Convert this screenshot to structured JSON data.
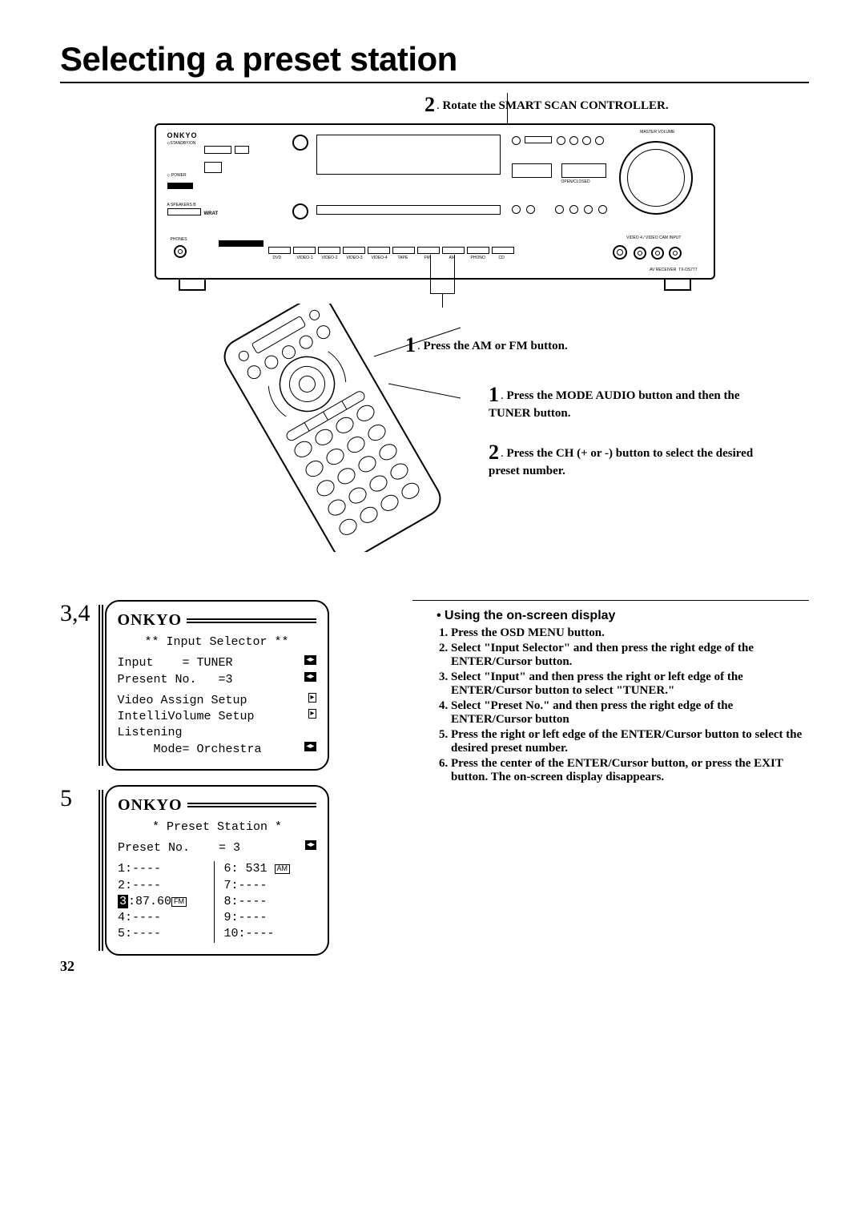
{
  "title": "Selecting a preset station",
  "page_number": "32",
  "brand": "ONKYO",
  "receiver_model": "TX-DS777",
  "receiver_label": "AV RECEIVER",
  "receiver_inputs": [
    "DVD",
    "VIDEO-1",
    "VIDEO-2",
    "VIDEO-3",
    "VIDEO-4",
    "TAPE",
    "FM",
    "AM",
    "PHONO",
    "CD"
  ],
  "callouts": {
    "r1": {
      "num": "1",
      "text": "Press the AM or FM button."
    },
    "r2": {
      "num": "2",
      "text": "Rotate the SMART SCAN CONTROLLER."
    },
    "m1": {
      "num": "1",
      "text": "Press the MODE AUDIO button and then the TUNER button."
    },
    "m2": {
      "num": "2",
      "text": "Press the CH (+ or -) button to select the desired preset number."
    }
  },
  "osd1": {
    "step": "3,4",
    "title": "** Input Selector **",
    "lines": {
      "input_label": "Input",
      "input_value": "= TUNER",
      "present_label": " Present No.",
      "present_value": "=3",
      "video": "Video Assign Setup",
      "volume": "IntelliVolume Setup",
      "listening": "Listening",
      "mode": "Mode= Orchestra"
    }
  },
  "osd2": {
    "step": "5",
    "title": "* Preset Station *",
    "preset_label": "Preset No.",
    "preset_value": "= 3",
    "left": [
      " 1:----",
      " 2:----",
      " 3:87.60",
      " 4:----",
      " 5:----"
    ],
    "left_highlight_index": 2,
    "left_badge": "FM MHz",
    "right": [
      " 6: 531",
      " 7:----",
      " 8:----",
      " 9:----",
      "10:----"
    ],
    "right_badge": "AM kHz"
  },
  "using": {
    "title": "Using the on-screen display",
    "steps": [
      "Press the OSD MENU button.",
      "Select \"Input Selector\" and then press the right edge of the ENTER/Cursor button.",
      "Select \"Input\" and then press the right or left edge of the ENTER/Cursor button to select \"TUNER.\"",
      "Select \"Preset No.\" and then press the right edge of the ENTER/Cursor button",
      "Press the right or left edge of the ENTER/Cursor button to select the desired preset number.",
      "Press the center of the ENTER/Cursor button, or press the EXIT button. The on-screen display disappears."
    ]
  }
}
